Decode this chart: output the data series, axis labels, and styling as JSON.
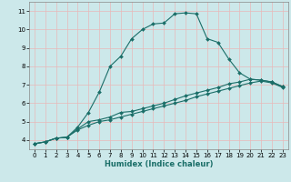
{
  "title": "",
  "xlabel": "Humidex (Indice chaleur)",
  "xlim": [
    -0.5,
    23.5
  ],
  "ylim": [
    3.5,
    11.5
  ],
  "yticks": [
    4,
    5,
    6,
    7,
    8,
    9,
    10,
    11
  ],
  "xticks": [
    0,
    1,
    2,
    3,
    4,
    5,
    6,
    7,
    8,
    9,
    10,
    11,
    12,
    13,
    14,
    15,
    16,
    17,
    18,
    19,
    20,
    21,
    22,
    23
  ],
  "bg_color": "#cce8ea",
  "grid_color": "#e8b8b8",
  "line_color": "#1a6e68",
  "line1_x": [
    0,
    1,
    2,
    3,
    4,
    5,
    6,
    7,
    8,
    9,
    10,
    11,
    12,
    13,
    14,
    15,
    16,
    17,
    18,
    19,
    20,
    21,
    22,
    23
  ],
  "line1_y": [
    3.8,
    3.9,
    4.1,
    4.15,
    4.7,
    5.5,
    6.6,
    8.0,
    8.55,
    9.5,
    10.0,
    10.3,
    10.35,
    10.85,
    10.9,
    10.85,
    9.5,
    9.3,
    8.4,
    7.65,
    7.3,
    7.25,
    7.15,
    6.9
  ],
  "line2_x": [
    0,
    1,
    2,
    3,
    4,
    5,
    6,
    7,
    8,
    9,
    10,
    11,
    12,
    13,
    14,
    15,
    16,
    17,
    18,
    19,
    20,
    21,
    22,
    23
  ],
  "line2_y": [
    3.8,
    3.9,
    4.1,
    4.15,
    4.6,
    5.0,
    5.1,
    5.25,
    5.5,
    5.55,
    5.7,
    5.85,
    6.0,
    6.2,
    6.4,
    6.55,
    6.7,
    6.85,
    7.05,
    7.15,
    7.3,
    7.25,
    7.15,
    6.9
  ],
  "line3_x": [
    0,
    1,
    2,
    3,
    4,
    5,
    6,
    7,
    8,
    9,
    10,
    11,
    12,
    13,
    14,
    15,
    16,
    17,
    18,
    19,
    20,
    21,
    22,
    23
  ],
  "line3_y": [
    3.8,
    3.9,
    4.1,
    4.15,
    4.55,
    4.8,
    5.0,
    5.1,
    5.25,
    5.4,
    5.55,
    5.7,
    5.85,
    6.0,
    6.15,
    6.35,
    6.5,
    6.65,
    6.8,
    6.95,
    7.1,
    7.2,
    7.1,
    6.85
  ],
  "tick_fontsize": 5.0,
  "xlabel_fontsize": 6.0
}
